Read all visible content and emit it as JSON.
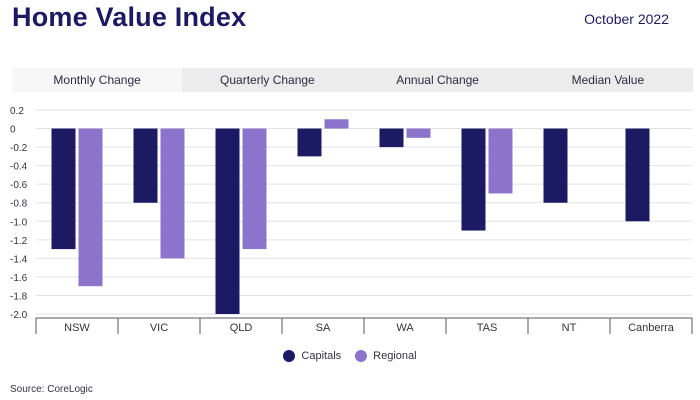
{
  "header": {
    "title": "Home Value Index",
    "date": "October 2022"
  },
  "tabs": [
    {
      "label": "Monthly Change",
      "active": true
    },
    {
      "label": "Quarterly Change",
      "active": false
    },
    {
      "label": "Annual Change",
      "active": false
    },
    {
      "label": "Median Value",
      "active": false
    }
  ],
  "source": "Source: CoreLogic",
  "colors": {
    "capitals": "#1b1a63",
    "regional": "#8c74cc",
    "title": "#1b1a63"
  },
  "chart_data": {
    "type": "bar",
    "categories": [
      "NSW",
      "VIC",
      "QLD",
      "SA",
      "WA",
      "TAS",
      "NT",
      "Canberra"
    ],
    "series": [
      {
        "name": "Capitals",
        "values": [
          -1.3,
          -0.8,
          -2.0,
          -0.3,
          -0.2,
          -1.1,
          -0.8,
          -1.0
        ]
      },
      {
        "name": "Regional",
        "values": [
          -1.7,
          -1.4,
          -1.3,
          0.1,
          -0.1,
          -0.7,
          null,
          null
        ]
      }
    ],
    "yticks": [
      "0.2",
      "0",
      "-0.2",
      "-0.4",
      "-0.6",
      "-0.8",
      "-1.0",
      "-1.2",
      "-1.4",
      "-1.6",
      "-1.8",
      "-2.0"
    ],
    "ylim": [
      -2.0,
      0.2
    ],
    "grid": true,
    "legend": "bottom-center"
  }
}
